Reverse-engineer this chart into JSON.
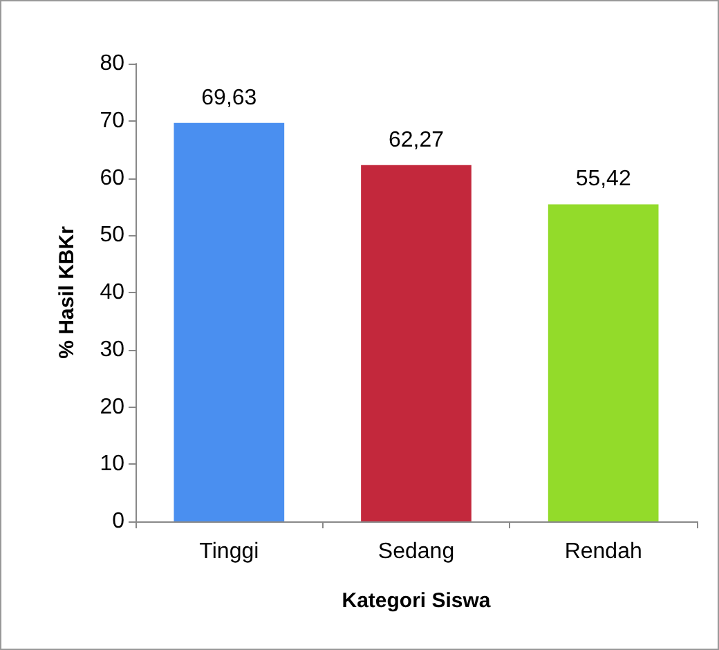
{
  "chart_data": {
    "type": "bar",
    "xlabel": "Kategori Siswa",
    "ylabel": "% Hasil KBKr",
    "categories": [
      "Tinggi",
      "Sedang",
      "Rendah"
    ],
    "values": [
      69.63,
      62.27,
      55.42
    ],
    "colors": [
      "#4a8ff0",
      "#c3283c",
      "#93db2a"
    ],
    "value_labels": [
      "69,63",
      "62,27",
      "55,42"
    ],
    "ylim": [
      0,
      80
    ],
    "yticks": [
      0,
      10,
      20,
      30,
      40,
      50,
      60,
      70,
      80
    ],
    "grid": false
  }
}
